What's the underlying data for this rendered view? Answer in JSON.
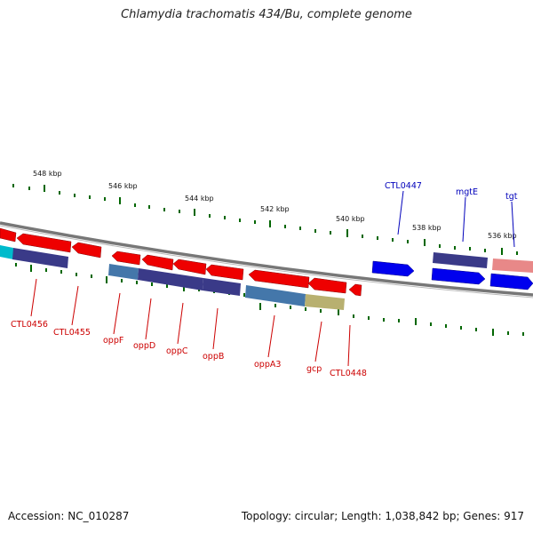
{
  "title": "Chlamydia trachomatis 434/Bu, complete genome",
  "footer": {
    "accession": "Accession: NC_010287",
    "topology": "Topology: circular; Length: 1,038,842 bp; Genes: 917"
  },
  "scale_labels": [
    "548 kbp",
    "546 kbp",
    "544 kbp",
    "542 kbp",
    "540 kbp",
    "538 kbp",
    "536 kbp"
  ],
  "gene_labels_red": [
    "CTL0456",
    "CTL0455",
    "oppF",
    "oppD",
    "oppC",
    "oppB",
    "oppA3",
    "gcp",
    "CTL0448"
  ],
  "gene_labels_blue": [
    "CTL0447",
    "mgtE",
    "tgt"
  ],
  "colors": {
    "feature_red": "#ee0000",
    "feature_blue": "#0000ee",
    "feature_navy": "#3a3a88",
    "feature_steel": "#4477aa",
    "feature_olive": "#b8b070",
    "feature_pink": "#e88888",
    "feature_cyan": "#00bbcc",
    "backbone": "#777777",
    "tick": "#006600"
  }
}
